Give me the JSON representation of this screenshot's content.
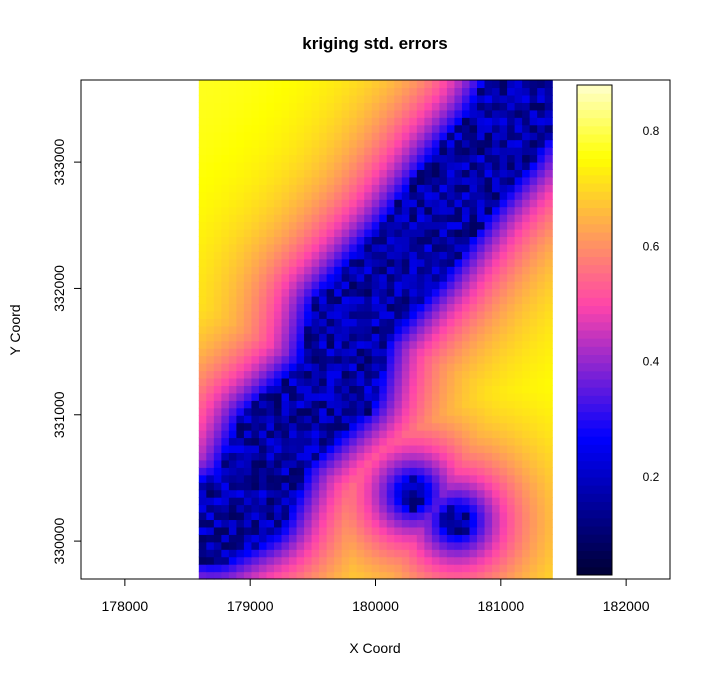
{
  "chart_data": {
    "type": "heatmap",
    "title": "kriging std. errors",
    "xlabel": "X Coord",
    "ylabel": "Y Coord",
    "xlim": [
      177650,
      182350
    ],
    "ylim": [
      329700,
      333650
    ],
    "x_ticks": [
      "178000",
      "179000",
      "180000",
      "181000",
      "182000"
    ],
    "y_ticks": [
      "330000",
      "331000",
      "332000",
      "333000"
    ],
    "grid_extent": {
      "x": [
        178590,
        181410
      ],
      "y": [
        329700,
        333650
      ]
    },
    "grid_size": {
      "cols": 47,
      "rows": 67
    },
    "colorbar": {
      "ticks": [
        "0.2",
        "0.4",
        "0.6",
        "0.8"
      ],
      "range": [
        0.03,
        0.88
      ],
      "colors": [
        "#000033",
        "#0000ff",
        "#ff44aa",
        "#ffff00",
        "#ffffcc"
      ]
    },
    "low_error_band": [
      {
        "x": 178700,
        "y": 330150
      },
      {
        "x": 179000,
        "y": 330300
      },
      {
        "x": 179200,
        "y": 330800
      },
      {
        "x": 179700,
        "y": 331250
      },
      {
        "x": 179800,
        "y": 331750
      },
      {
        "x": 180300,
        "y": 332300
      },
      {
        "x": 180700,
        "y": 332850
      },
      {
        "x": 181000,
        "y": 333200
      },
      {
        "x": 181200,
        "y": 333550
      }
    ],
    "low_error_spots": [
      {
        "x": 180300,
        "y": 330380
      },
      {
        "x": 180650,
        "y": 330160
      }
    ],
    "grid_visible": false,
    "colorbar_position": "right"
  }
}
